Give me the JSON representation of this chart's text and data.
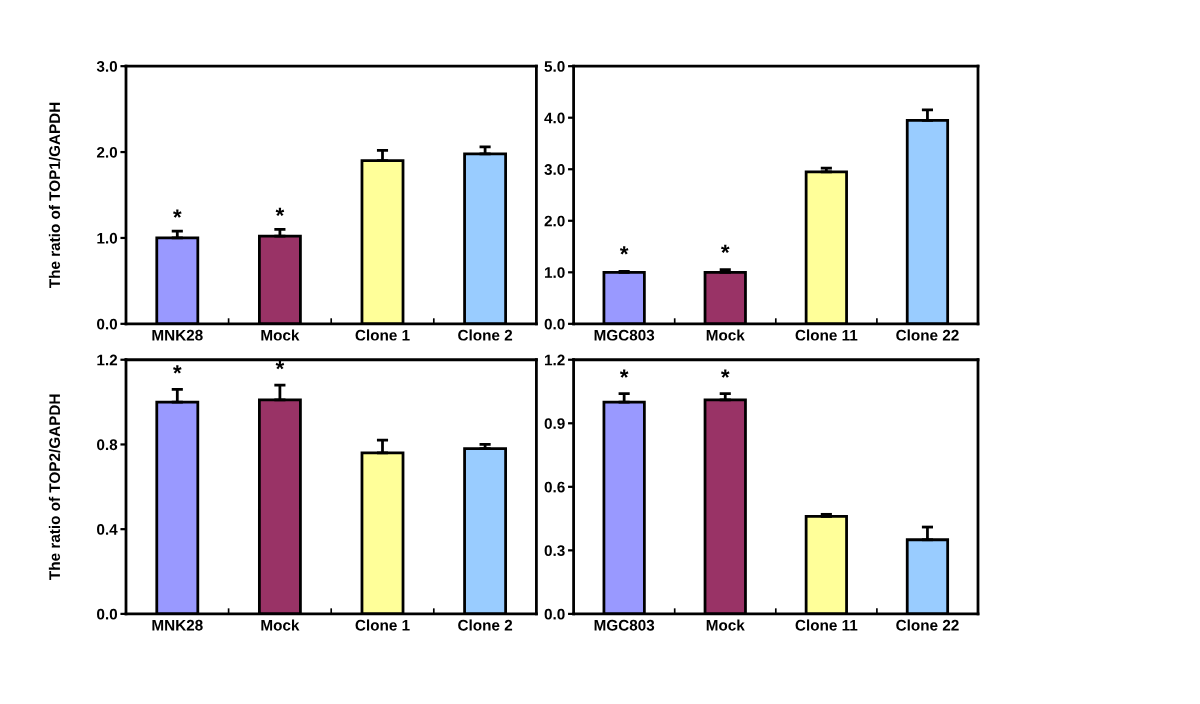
{
  "chart_data": [
    {
      "type": "bar",
      "ylabel": "The ratio of TOP1/GAPDH",
      "categories": [
        "MNK28",
        "Mock",
        "Clone 1",
        "Clone 2"
      ],
      "values": [
        1.0,
        1.02,
        1.9,
        1.98
      ],
      "errors": [
        [
          1.0,
          1.08
        ],
        [
          1.02,
          1.1
        ],
        [
          1.9,
          2.02
        ],
        [
          1.98,
          2.06
        ]
      ],
      "colors": [
        "#9999ff",
        "#993366",
        "#ffff99",
        "#99ccff"
      ],
      "ylim": [
        0,
        3
      ],
      "yticks": [
        {
          "value": 0,
          "label": "0.0"
        },
        {
          "value": 1,
          "label": "1.0"
        },
        {
          "value": 2,
          "label": "2.0"
        },
        {
          "value": 3,
          "label": "3.0"
        }
      ],
      "annotations": [
        {
          "text": "*",
          "x": "MNK28",
          "y": 1.1
        },
        {
          "text": "*",
          "x": "Mock",
          "y": 1.12
        }
      ]
    },
    {
      "type": "bar",
      "categories": [
        "MGC803",
        "Mock",
        "Clone 11",
        "Clone 22"
      ],
      "values": [
        1.0,
        1.0,
        2.95,
        3.95
      ],
      "errors": [
        [
          1.0,
          1.02
        ],
        [
          1.0,
          1.05
        ],
        [
          2.95,
          3.02
        ],
        [
          3.95,
          4.15
        ]
      ],
      "colors": [
        "#9999ff",
        "#993366",
        "#ffff99",
        "#99ccff"
      ],
      "ylim": [
        0,
        5
      ],
      "yticks": [
        {
          "value": 0,
          "label": "0.0"
        },
        {
          "value": 1,
          "label": "1.0"
        },
        {
          "value": 2,
          "label": "2.0"
        },
        {
          "value": 3,
          "label": "3.0"
        },
        {
          "value": 4,
          "label": "4.0"
        },
        {
          "value": 5,
          "label": "5.0"
        }
      ],
      "annotations": [
        {
          "text": "*",
          "x": "MGC803",
          "y": 1.12
        },
        {
          "text": "*",
          "x": "Mock",
          "y": 1.15
        }
      ]
    },
    {
      "type": "bar",
      "ylabel": "The ratio of TOP2/GAPDH",
      "categories": [
        "MNK28",
        "Mock",
        "Clone 1",
        "Clone 2"
      ],
      "values": [
        1.0,
        1.01,
        0.76,
        0.78
      ],
      "errors": [
        [
          1.0,
          1.06
        ],
        [
          1.01,
          1.08
        ],
        [
          0.76,
          0.82
        ],
        [
          0.78,
          0.8
        ]
      ],
      "colors": [
        "#9999ff",
        "#993366",
        "#ffff99",
        "#99ccff"
      ],
      "ylim": [
        0,
        1.2
      ],
      "yticks": [
        {
          "value": 0,
          "label": "0.0"
        },
        {
          "value": 0.4,
          "label": "0.4"
        },
        {
          "value": 0.8,
          "label": "0.8"
        },
        {
          "value": 1.2,
          "label": "1.2"
        }
      ],
      "annotations": [
        {
          "text": "*",
          "x": "MNK28",
          "y": 1.08
        },
        {
          "text": "*",
          "x": "Mock",
          "y": 1.1
        }
      ]
    },
    {
      "type": "bar",
      "categories": [
        "MGC803",
        "Mock",
        "Clone 11",
        "Clone 22"
      ],
      "values": [
        1.0,
        1.01,
        0.46,
        0.35
      ],
      "errors": [
        [
          1.0,
          1.04
        ],
        [
          1.01,
          1.04
        ],
        [
          0.46,
          0.47
        ],
        [
          0.35,
          0.41
        ]
      ],
      "colors": [
        "#9999ff",
        "#993366",
        "#ffff99",
        "#99ccff"
      ],
      "ylim": [
        0,
        1.2
      ],
      "yticks": [
        {
          "value": 0,
          "label": "0.0"
        },
        {
          "value": 0.3,
          "label": "0.3"
        },
        {
          "value": 0.6,
          "label": "0.6"
        },
        {
          "value": 0.9,
          "label": "0.9"
        },
        {
          "value": 1.2,
          "label": "1.2"
        }
      ],
      "annotations": [
        {
          "text": "*",
          "x": "MGC803",
          "y": 1.06
        },
        {
          "text": "*",
          "x": "Mock",
          "y": 1.06
        }
      ]
    }
  ]
}
